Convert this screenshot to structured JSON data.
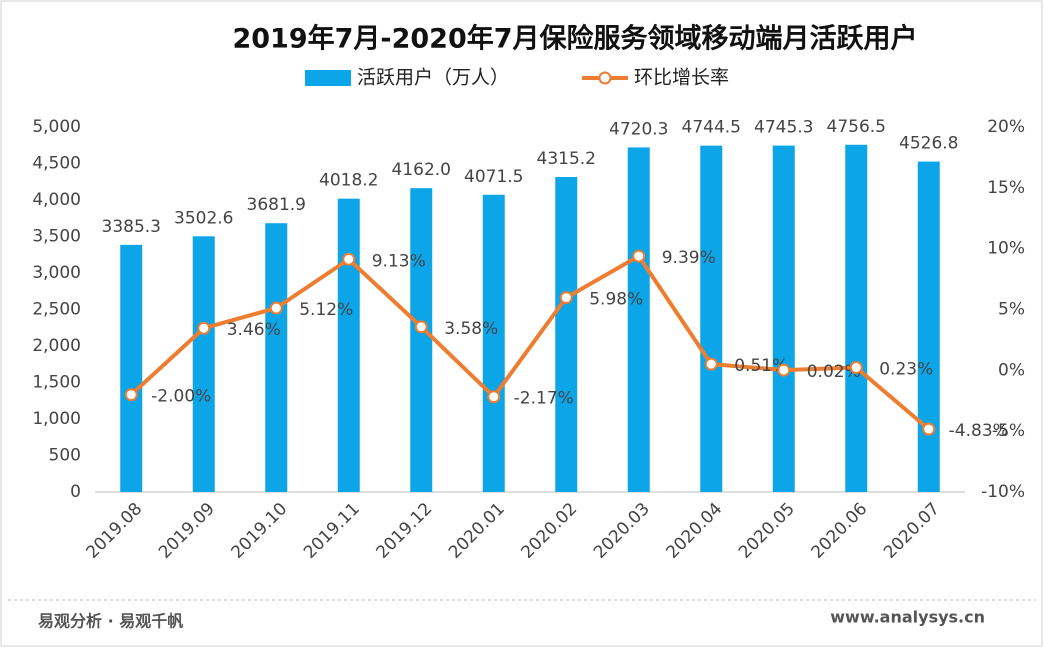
{
  "chart_data": {
    "type": "bar",
    "title": "2019年7月-2020年7月保险服务领域移动端月活跃用户",
    "categories": [
      "2019.08",
      "2019.09",
      "2019.10",
      "2019.11",
      "2019.12",
      "2020.01",
      "2020.02",
      "2020.03",
      "2020.04",
      "2020.05",
      "2020.06",
      "2020.07"
    ],
    "series": [
      {
        "name": "活跃用户（万人）",
        "type": "bar",
        "color": "#0ba5e8",
        "values": [
          3385.3,
          3502.6,
          3681.9,
          4018.2,
          4162.0,
          4071.5,
          4315.2,
          4720.3,
          4744.5,
          4745.3,
          4756.5,
          4526.8
        ],
        "value_labels": [
          "3385.3",
          "3502.6",
          "3681.9",
          "4018.2",
          "4162.0",
          "4071.5",
          "4315.2",
          "4720.3",
          "4744.5",
          "4745.3",
          "4756.5",
          "4526.8"
        ]
      },
      {
        "name": "环比增长率",
        "type": "line",
        "axis": "y2",
        "color": "#ed7d31",
        "values": [
          -2.0,
          3.46,
          5.12,
          9.13,
          3.58,
          -2.17,
          5.98,
          9.39,
          0.51,
          0.02,
          0.23,
          -4.83
        ],
        "value_labels": [
          "-2.00%",
          "3.46%",
          "5.12%",
          "9.13%",
          "3.58%",
          "-2.17%",
          "5.98%",
          "9.39%",
          "0.51%",
          "0.02%",
          "0.23%",
          "-4.83%"
        ]
      }
    ],
    "ylim": [
      0,
      5000
    ],
    "yticks": [
      0,
      500,
      {
        "value": 1000,
        "label": "1,000"
      },
      {
        "value": 1500,
        "label": "1,500"
      },
      {
        "value": 2000,
        "label": "2,000"
      },
      {
        "value": 2500,
        "label": "2,500"
      },
      {
        "value": 3000,
        "label": "3,000"
      },
      {
        "value": 3500,
        "label": "3,500"
      },
      {
        "value": 4000,
        "label": "4,000"
      },
      {
        "value": 4500,
        "label": "4,500"
      },
      {
        "value": 5000,
        "label": "5,000"
      }
    ],
    "y2lim": [
      -10,
      20
    ],
    "y2ticks": [
      {
        "value": -10,
        "label": "-10%"
      },
      {
        "value": -5,
        "label": "-5%"
      },
      {
        "value": 0,
        "label": "0%"
      },
      {
        "value": 5,
        "label": "5%"
      },
      {
        "value": 10,
        "label": "10%"
      },
      {
        "value": 15,
        "label": "15%"
      },
      {
        "value": 20,
        "label": "20%"
      }
    ],
    "grid": false,
    "legend": "top"
  },
  "footer": {
    "left": "易观分析 · 易观千帆",
    "right": "www.analysys.cn"
  }
}
